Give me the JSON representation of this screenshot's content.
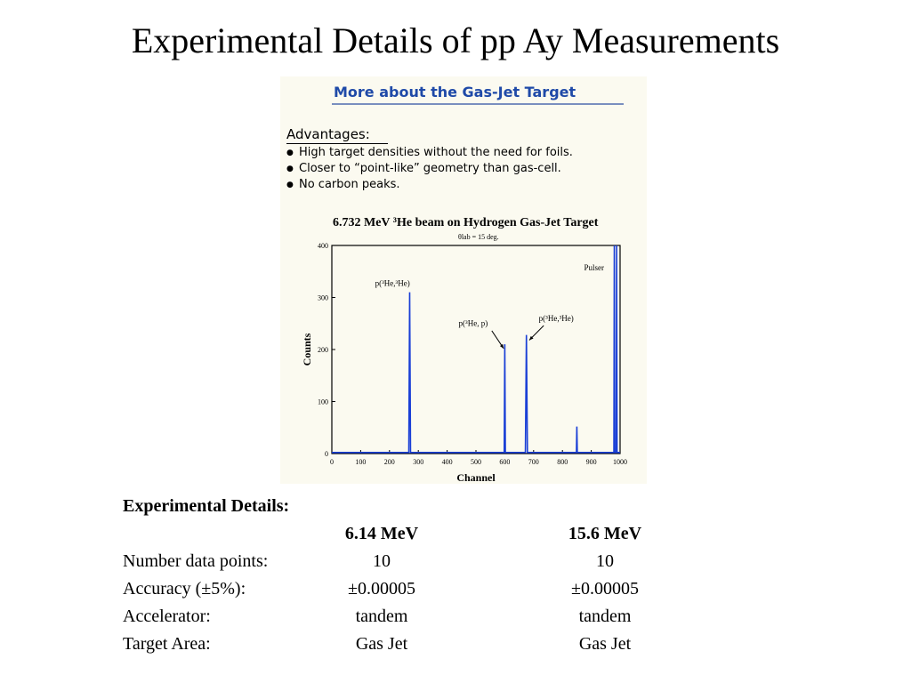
{
  "slide": {
    "title": "Experimental Details of pp Ay Measurements"
  },
  "panel": {
    "heading": "More about the Gas-Jet Target",
    "advantages_title": "Advantages:",
    "advantages": [
      "High target densities without the need for foils.",
      "Closer to “point-like” geometry than gas-cell.",
      "No carbon peaks."
    ]
  },
  "chart_data": {
    "type": "line",
    "title": "6.732 MeV ³He beam on Hydrogen Gas-Jet Target",
    "subtitle": "θlab = 15 deg.",
    "xlabel": "Channel",
    "ylabel": "Counts",
    "xlim": [
      0,
      1000
    ],
    "ylim": [
      0,
      400
    ],
    "xticks": [
      0,
      100,
      200,
      300,
      400,
      500,
      600,
      700,
      800,
      900,
      1000
    ],
    "yticks": [
      0,
      100,
      200,
      300,
      400
    ],
    "line_color": "#1a3fd6",
    "grid": false,
    "peaks": [
      {
        "channel": 270,
        "counts": 310,
        "width": 6
      },
      {
        "channel": 600,
        "counts": 210,
        "width": 4
      },
      {
        "channel": 675,
        "counts": 228,
        "width": 7
      },
      {
        "channel": 850,
        "counts": 52,
        "width": 3
      },
      {
        "channel": 980,
        "counts": 400,
        "width": 3
      },
      {
        "channel": 988,
        "counts": 400,
        "width": 3
      }
    ],
    "annotations": [
      {
        "text": "p(³He,³He)",
        "channel": 150,
        "counts": 322
      },
      {
        "text": "p(³He, p)",
        "channel": 440,
        "counts": 245
      },
      {
        "text": "p(³He,³He)",
        "channel": 718,
        "counts": 255
      },
      {
        "text": "Pulser",
        "channel": 875,
        "counts": 352
      }
    ]
  },
  "details": {
    "heading": "Experimental Details:",
    "columns": [
      "",
      "6.14 MeV",
      "15.6 MeV"
    ],
    "rows": [
      {
        "label": "Number data points:",
        "v1": "10",
        "v2": "10"
      },
      {
        "label": "Accuracy (±5%):",
        "v1": "±0.00005",
        "v2": "±0.00005"
      },
      {
        "label": "Accelerator:",
        "v1": "tandem",
        "v2": "tandem"
      },
      {
        "label": "Target Area:",
        "v1": "Gas Jet",
        "v2": "Gas Jet"
      }
    ]
  }
}
